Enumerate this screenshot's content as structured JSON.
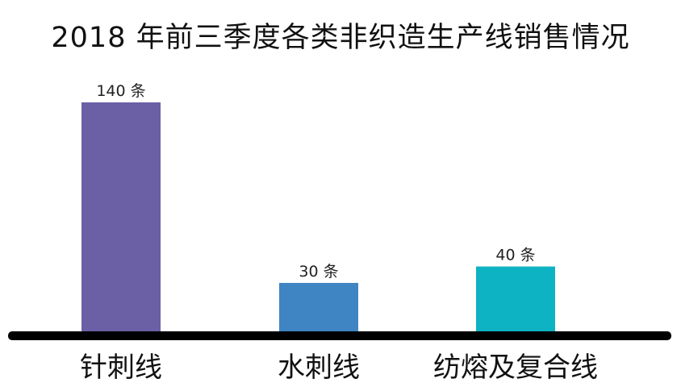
{
  "chart_data": {
    "type": "bar",
    "title": "2018 年前三季度各类非织造生产线销售情况",
    "categories": [
      "针刺线",
      "水刺线",
      "纺熔及复合线"
    ],
    "values": [
      140,
      30,
      40
    ],
    "data_labels": [
      "140 条",
      "30 条",
      "40 条"
    ],
    "colors": [
      "#6B5FA6",
      "#3F84C3",
      "#0EB3C3"
    ],
    "axis_color": "#000000",
    "ylim": [
      0,
      140
    ],
    "grid": false,
    "legend": "none",
    "xlabel": "",
    "ylabel": ""
  }
}
